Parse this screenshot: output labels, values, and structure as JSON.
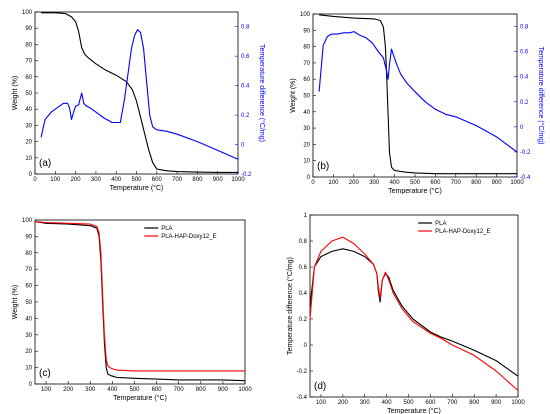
{
  "chart_data": [
    {
      "panel": "(a)",
      "type": "line",
      "xlabel": "Temperature (°C)",
      "ylabel": "Weight (%)",
      "y2label": "Temperature difference (°C/mg)",
      "xlim": [
        0,
        1000
      ],
      "ylim": [
        0,
        100
      ],
      "y2lim": [
        -0.2,
        0.9
      ],
      "xticks": [
        0,
        100,
        200,
        300,
        400,
        500,
        600,
        700,
        800,
        900,
        1000
      ],
      "yticks": [
        0,
        10,
        20,
        30,
        40,
        50,
        60,
        70,
        80,
        90,
        100
      ],
      "y2ticks": [
        -0.2,
        0,
        0.2,
        0.4,
        0.6,
        0.8
      ],
      "series": [
        {
          "axis": "left",
          "color": "#000000",
          "x": [
            30,
            100,
            150,
            180,
            200,
            215,
            230,
            245,
            260,
            300,
            350,
            400,
            450,
            480,
            500,
            520,
            540,
            560,
            580,
            600,
            650,
            700,
            800,
            900,
            1000
          ],
          "y": [
            99.5,
            99.5,
            99,
            97,
            94,
            88,
            78,
            74,
            72,
            68,
            64,
            61,
            57,
            52,
            45,
            35,
            25,
            15,
            7,
            3,
            2,
            1.5,
            1.2,
            1,
            1
          ]
        },
        {
          "axis": "right",
          "color": "#0000ff",
          "x": [
            30,
            50,
            80,
            110,
            140,
            160,
            170,
            180,
            190,
            200,
            215,
            230,
            240,
            255,
            270,
            300,
            340,
            380,
            420,
            440,
            460,
            475,
            490,
            505,
            520,
            535,
            550,
            565,
            580,
            600,
            650,
            700,
            800,
            900,
            1000
          ],
          "y": [
            0.05,
            0.17,
            0.22,
            0.25,
            0.28,
            0.28,
            0.25,
            0.17,
            0.22,
            0.26,
            0.27,
            0.35,
            0.28,
            0.26,
            0.25,
            0.22,
            0.18,
            0.15,
            0.15,
            0.3,
            0.5,
            0.65,
            0.74,
            0.78,
            0.76,
            0.65,
            0.42,
            0.2,
            0.12,
            0.1,
            0.09,
            0.07,
            0.02,
            -0.04,
            -0.1
          ]
        }
      ]
    },
    {
      "panel": "(b)",
      "type": "line",
      "xlabel": "Temperature (°C)",
      "ylabel": "Weight (%)",
      "y2label": "Temperature difference (°C/mg)",
      "xlim": [
        0,
        1000
      ],
      "ylim": [
        0,
        100
      ],
      "y2lim": [
        -0.4,
        0.9
      ],
      "xticks": [
        0,
        100,
        200,
        300,
        400,
        500,
        600,
        700,
        800,
        900,
        1000
      ],
      "yticks": [
        0,
        10,
        20,
        30,
        40,
        50,
        60,
        70,
        80,
        90,
        100
      ],
      "y2ticks": [
        -0.4,
        -0.2,
        0,
        0.2,
        0.4,
        0.6,
        0.8
      ],
      "series": [
        {
          "axis": "left",
          "color": "#000000",
          "x": [
            30,
            100,
            200,
            300,
            330,
            345,
            355,
            362,
            368,
            375,
            385,
            400,
            450,
            500,
            600,
            700,
            800,
            900,
            1000
          ],
          "y": [
            99.5,
            98.5,
            97.5,
            97,
            96,
            92,
            80,
            60,
            38,
            15,
            6,
            4,
            3,
            2.5,
            2,
            2,
            2,
            2,
            2
          ]
        },
        {
          "axis": "right",
          "color": "#0000ff",
          "x": [
            30,
            50,
            70,
            90,
            120,
            150,
            180,
            200,
            230,
            260,
            290,
            320,
            345,
            360,
            368,
            375,
            385,
            395,
            410,
            430,
            460,
            500,
            550,
            600,
            650,
            700,
            800,
            900,
            1000
          ],
          "y": [
            0.28,
            0.65,
            0.72,
            0.74,
            0.74,
            0.75,
            0.75,
            0.76,
            0.73,
            0.71,
            0.67,
            0.6,
            0.55,
            0.45,
            0.38,
            0.5,
            0.62,
            0.57,
            0.5,
            0.42,
            0.35,
            0.28,
            0.2,
            0.14,
            0.1,
            0.08,
            0.01,
            -0.08,
            -0.2
          ]
        }
      ]
    },
    {
      "panel": "(c)",
      "type": "line",
      "xlabel": "Temperature (°C)",
      "ylabel": "Weight (%)",
      "xlim": [
        50,
        1000
      ],
      "ylim": [
        0,
        100
      ],
      "xticks": [
        100,
        200,
        300,
        400,
        500,
        600,
        700,
        800,
        900,
        1000
      ],
      "yticks": [
        0,
        10,
        20,
        30,
        40,
        50,
        60,
        70,
        80,
        90,
        100
      ],
      "legend": "top-right",
      "series": [
        {
          "name": "PLA",
          "color": "#000000",
          "x": [
            50,
            100,
            200,
            300,
            330,
            340,
            348,
            356,
            364,
            372,
            380,
            395,
            420,
            500,
            600,
            700,
            800,
            900,
            1000
          ],
          "y": [
            99,
            98,
            97.5,
            96.5,
            95,
            90,
            75,
            50,
            25,
            10,
            6,
            5,
            4,
            3.5,
            3,
            2.5,
            2.5,
            2.5,
            2
          ]
        },
        {
          "name": "PLA-HAP-Doxy12_E",
          "color": "#ff0000",
          "x": [
            50,
            100,
            200,
            300,
            330,
            340,
            348,
            356,
            364,
            372,
            380,
            395,
            420,
            500,
            600,
            700,
            800,
            900,
            1000
          ],
          "y": [
            99,
            98.5,
            98,
            97.5,
            96,
            92,
            80,
            55,
            30,
            15,
            11,
            9.5,
            8.5,
            8,
            8,
            8,
            8,
            8,
            8
          ]
        }
      ]
    },
    {
      "panel": "(d)",
      "type": "line",
      "xlabel": "Temperature (°C)",
      "ylabel": "Temperature difference (°C/mg)",
      "xlim": [
        50,
        1000
      ],
      "ylim": [
        -0.4,
        1.0
      ],
      "xticks": [
        100,
        200,
        300,
        400,
        500,
        600,
        700,
        800,
        900,
        1000
      ],
      "yticks": [
        -0.4,
        -0.2,
        0.0,
        0.2,
        0.4,
        0.6,
        0.8,
        1.0
      ],
      "legend": "top-right",
      "series": [
        {
          "name": "PLA",
          "color": "#000000",
          "x": [
            50,
            70,
            100,
            150,
            200,
            250,
            300,
            340,
            355,
            362,
            370,
            380,
            395,
            410,
            430,
            470,
            520,
            600,
            650,
            700,
            800,
            900,
            1000
          ],
          "y": [
            0.3,
            0.6,
            0.68,
            0.72,
            0.74,
            0.72,
            0.68,
            0.62,
            0.55,
            0.42,
            0.33,
            0.5,
            0.55,
            0.52,
            0.42,
            0.3,
            0.2,
            0.1,
            0.06,
            0.03,
            -0.04,
            -0.12,
            -0.24
          ]
        },
        {
          "name": "PLA-HAP-Doxy12_E",
          "color": "#ff0000",
          "x": [
            50,
            70,
            100,
            150,
            200,
            250,
            300,
            340,
            355,
            362,
            370,
            380,
            395,
            410,
            430,
            470,
            520,
            600,
            650,
            700,
            800,
            900,
            1000
          ],
          "y": [
            0.2,
            0.6,
            0.72,
            0.8,
            0.83,
            0.78,
            0.7,
            0.62,
            0.55,
            0.45,
            0.36,
            0.5,
            0.56,
            0.5,
            0.4,
            0.28,
            0.18,
            0.09,
            0.05,
            0.0,
            -0.08,
            -0.2,
            -0.35
          ]
        }
      ]
    }
  ]
}
